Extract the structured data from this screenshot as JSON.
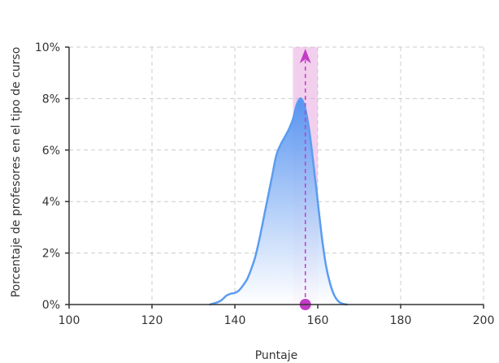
{
  "chart_data": {
    "type": "area",
    "title": "",
    "xlabel": "Puntaje",
    "ylabel": "Porcentaje de profesores en el tipo de curso",
    "xlim": [
      100,
      200
    ],
    "ylim": [
      0,
      10
    ],
    "x_ticks": [
      100,
      120,
      140,
      160,
      180,
      200
    ],
    "x_tick_labels": [
      "100",
      "120",
      "140",
      "160",
      "180",
      "200"
    ],
    "y_ticks": [
      0,
      2,
      4,
      6,
      8,
      10
    ],
    "y_tick_labels": [
      "0%",
      "2%",
      "4%",
      "6%",
      "8%",
      "10%"
    ],
    "grid": true,
    "legend": "none",
    "series": [
      {
        "x": [
          134,
          136,
          137,
          138,
          139,
          140,
          141,
          142,
          143,
          144,
          145,
          146,
          147,
          148,
          149,
          150,
          151,
          152,
          153,
          154,
          155,
          156,
          157,
          158,
          159,
          160,
          161,
          162,
          163,
          164,
          165,
          166,
          167
        ],
        "values": [
          0,
          0.1,
          0.2,
          0.35,
          0.42,
          0.45,
          0.55,
          0.75,
          1.0,
          1.4,
          1.9,
          2.6,
          3.4,
          4.2,
          5.0,
          5.8,
          6.2,
          6.5,
          6.8,
          7.2,
          7.8,
          8.0,
          7.6,
          6.7,
          5.4,
          4.0,
          2.6,
          1.5,
          0.8,
          0.35,
          0.12,
          0.03,
          0
        ]
      }
    ],
    "highlight_band": {
      "x_start": 154,
      "x_end": 160
    },
    "marker": {
      "x": 157,
      "y": 0
    },
    "colors": {
      "curve": "#5b9cf0",
      "fill_top": "#4f8ff0",
      "fill_bottom": "#ffffff",
      "band": "#e9a8e0",
      "marker": "#c23cc7",
      "grid": "#cccccc",
      "axis": "#333333"
    }
  }
}
